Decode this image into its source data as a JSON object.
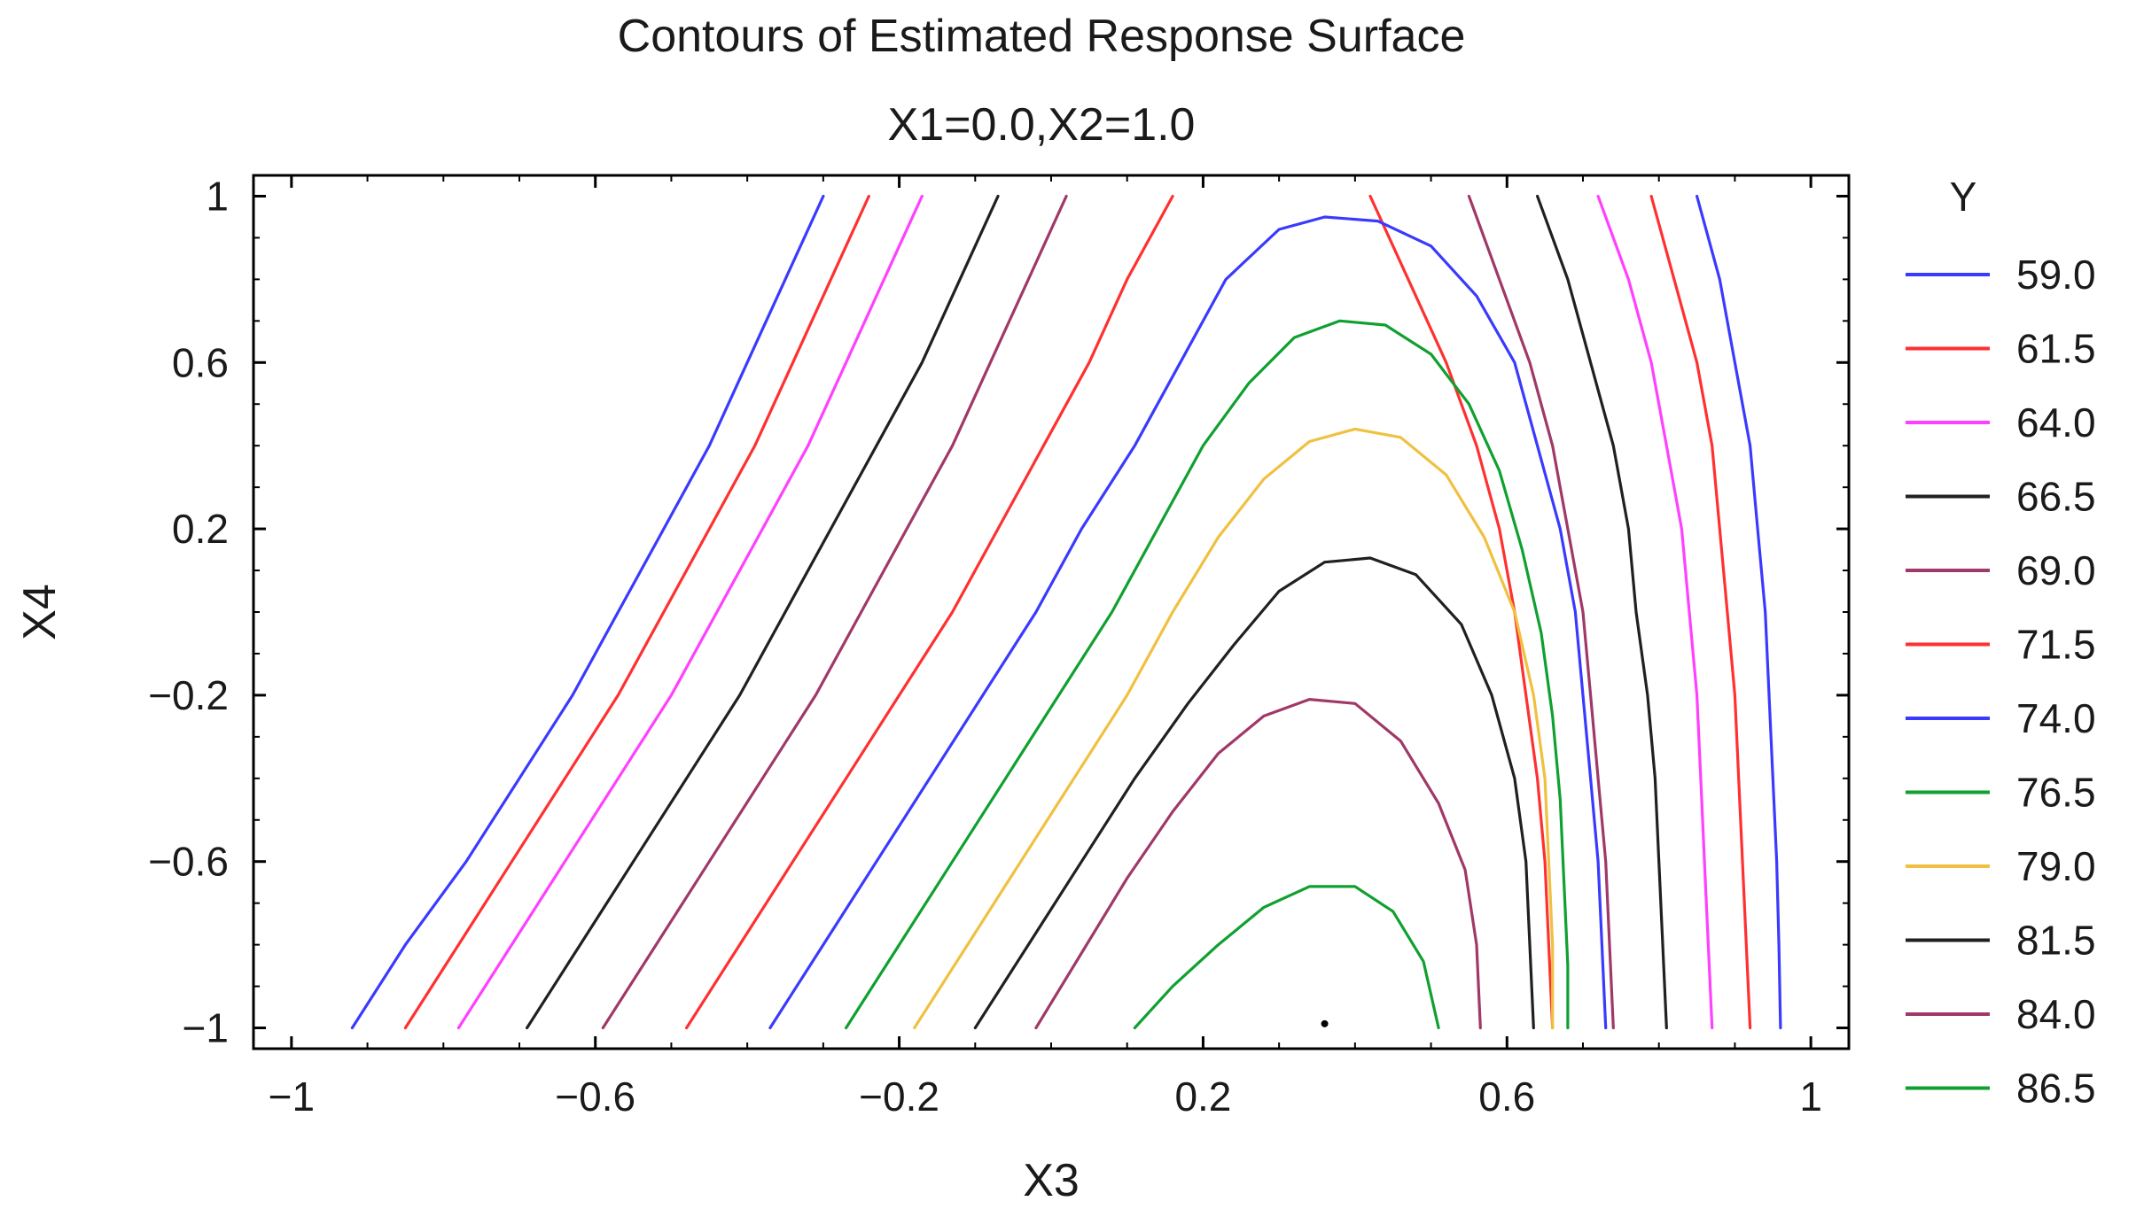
{
  "chart_data": {
    "type": "contour",
    "title": "Contours of Estimated Response Surface",
    "subtitle": "X1=0.0,X2=1.0",
    "xlabel": "X3",
    "ylabel": "X4",
    "xlim": [
      -1.05,
      1.05
    ],
    "ylim": [
      -1.05,
      1.05
    ],
    "x_ticks": [
      {
        "value": -1,
        "label": "-1"
      },
      {
        "value": -0.6,
        "label": "-0.6"
      },
      {
        "value": -0.2,
        "label": "-0.2"
      },
      {
        "value": 0.2,
        "label": "0.2"
      },
      {
        "value": 0.6,
        "label": "0.6"
      },
      {
        "value": 1,
        "label": "1"
      }
    ],
    "y_ticks": [
      {
        "value": 1,
        "label": "1"
      },
      {
        "value": 0.6,
        "label": "0.6"
      },
      {
        "value": 0.2,
        "label": "0.2"
      },
      {
        "value": -0.2,
        "label": "-0.2"
      },
      {
        "value": -0.6,
        "label": "-0.6"
      },
      {
        "value": -1,
        "label": "-1"
      }
    ],
    "legend": {
      "title": "Y",
      "placement": "right",
      "entries": [
        {
          "label": "59.0",
          "color": "#3a3aff"
        },
        {
          "label": "61.5",
          "color": "#ff3030"
        },
        {
          "label": "64.0",
          "color": "#ff40ff"
        },
        {
          "label": "66.5",
          "color": "#202020"
        },
        {
          "label": "69.0",
          "color": "#a03868"
        },
        {
          "label": "71.5",
          "color": "#ff3030"
        },
        {
          "label": "74.0",
          "color": "#3a3aff"
        },
        {
          "label": "76.5",
          "color": "#10a030"
        },
        {
          "label": "79.0",
          "color": "#f0c040"
        },
        {
          "label": "81.5",
          "color": "#202020"
        },
        {
          "label": "84.0",
          "color": "#a03868"
        },
        {
          "label": "86.5",
          "color": "#10a030"
        }
      ]
    },
    "series": [
      {
        "level": 59.0,
        "color": "#3a3aff",
        "segments": [
          [
            [
              -0.92,
              -1
            ],
            [
              -0.85,
              -0.8
            ],
            [
              -0.77,
              -0.6
            ],
            [
              -0.7,
              -0.4
            ],
            [
              -0.63,
              -0.2
            ],
            [
              -0.57,
              0
            ],
            [
              -0.51,
              0.2
            ],
            [
              -0.45,
              0.4
            ],
            [
              -0.4,
              0.6
            ],
            [
              -0.35,
              0.8
            ],
            [
              -0.3,
              1
            ]
          ],
          [
            [
              0.85,
              1
            ],
            [
              0.88,
              0.8
            ],
            [
              0.9,
              0.6
            ],
            [
              0.92,
              0.4
            ],
            [
              0.93,
              0.2
            ],
            [
              0.94,
              0
            ],
            [
              0.945,
              -0.2
            ],
            [
              0.95,
              -0.4
            ],
            [
              0.955,
              -0.6
            ],
            [
              0.958,
              -0.8
            ],
            [
              0.96,
              -1
            ]
          ]
        ]
      },
      {
        "level": 61.5,
        "color": "#ff3030",
        "segments": [
          [
            [
              -0.85,
              -1
            ],
            [
              -0.78,
              -0.8
            ],
            [
              -0.71,
              -0.6
            ],
            [
              -0.64,
              -0.4
            ],
            [
              -0.57,
              -0.2
            ],
            [
              -0.51,
              0
            ],
            [
              -0.45,
              0.2
            ],
            [
              -0.39,
              0.4
            ],
            [
              -0.34,
              0.6
            ],
            [
              -0.29,
              0.8
            ],
            [
              -0.24,
              1
            ]
          ],
          [
            [
              0.79,
              1
            ],
            [
              0.82,
              0.8
            ],
            [
              0.85,
              0.6
            ],
            [
              0.87,
              0.4
            ],
            [
              0.88,
              0.2
            ],
            [
              0.89,
              0
            ],
            [
              0.9,
              -0.2
            ],
            [
              0.905,
              -0.4
            ],
            [
              0.91,
              -0.6
            ],
            [
              0.915,
              -0.8
            ],
            [
              0.92,
              -1
            ]
          ]
        ]
      },
      {
        "level": 64.0,
        "color": "#ff40ff",
        "segments": [
          [
            [
              -0.78,
              -1
            ],
            [
              -0.71,
              -0.8
            ],
            [
              -0.64,
              -0.6
            ],
            [
              -0.57,
              -0.4
            ],
            [
              -0.5,
              -0.2
            ],
            [
              -0.44,
              0
            ],
            [
              -0.38,
              0.2
            ],
            [
              -0.32,
              0.4
            ],
            [
              -0.27,
              0.6
            ],
            [
              -0.22,
              0.8
            ],
            [
              -0.17,
              1
            ]
          ],
          [
            [
              0.72,
              1
            ],
            [
              0.76,
              0.8
            ],
            [
              0.79,
              0.6
            ],
            [
              0.81,
              0.4
            ],
            [
              0.83,
              0.2
            ],
            [
              0.84,
              0
            ],
            [
              0.85,
              -0.2
            ],
            [
              0.855,
              -0.4
            ],
            [
              0.86,
              -0.6
            ],
            [
              0.865,
              -0.8
            ],
            [
              0.87,
              -1
            ]
          ]
        ]
      },
      {
        "level": 66.5,
        "color": "#202020",
        "segments": [
          [
            [
              -0.69,
              -1
            ],
            [
              -0.62,
              -0.8
            ],
            [
              -0.55,
              -0.6
            ],
            [
              -0.48,
              -0.4
            ],
            [
              -0.41,
              -0.2
            ],
            [
              -0.35,
              0
            ],
            [
              -0.29,
              0.2
            ],
            [
              -0.23,
              0.4
            ],
            [
              -0.17,
              0.6
            ],
            [
              -0.12,
              0.8
            ],
            [
              -0.07,
              1
            ]
          ],
          [
            [
              0.64,
              1
            ],
            [
              0.68,
              0.8
            ],
            [
              0.71,
              0.6
            ],
            [
              0.74,
              0.4
            ],
            [
              0.76,
              0.2
            ],
            [
              0.77,
              0
            ],
            [
              0.785,
              -0.2
            ],
            [
              0.795,
              -0.4
            ],
            [
              0.8,
              -0.6
            ],
            [
              0.805,
              -0.8
            ],
            [
              0.81,
              -1
            ]
          ]
        ]
      },
      {
        "level": 69.0,
        "color": "#a03868",
        "segments": [
          [
            [
              -0.59,
              -1
            ],
            [
              -0.52,
              -0.8
            ],
            [
              -0.45,
              -0.6
            ],
            [
              -0.38,
              -0.4
            ],
            [
              -0.31,
              -0.2
            ],
            [
              -0.25,
              0
            ],
            [
              -0.19,
              0.2
            ],
            [
              -0.13,
              0.4
            ],
            [
              -0.08,
              0.6
            ],
            [
              -0.03,
              0.8
            ],
            [
              0.02,
              1
            ]
          ],
          [
            [
              0.55,
              1
            ],
            [
              0.59,
              0.8
            ],
            [
              0.63,
              0.6
            ],
            [
              0.66,
              0.4
            ],
            [
              0.68,
              0.2
            ],
            [
              0.7,
              0
            ],
            [
              0.71,
              -0.2
            ],
            [
              0.72,
              -0.4
            ],
            [
              0.73,
              -0.6
            ],
            [
              0.735,
              -0.8
            ],
            [
              0.74,
              -1
            ]
          ]
        ]
      },
      {
        "level": 71.5,
        "color": "#ff3030",
        "segments": [
          [
            [
              -0.48,
              -1
            ],
            [
              -0.41,
              -0.8
            ],
            [
              -0.34,
              -0.6
            ],
            [
              -0.27,
              -0.4
            ],
            [
              -0.2,
              -0.2
            ],
            [
              -0.13,
              0
            ],
            [
              -0.07,
              0.2
            ],
            [
              -0.01,
              0.4
            ],
            [
              0.05,
              0.6
            ],
            [
              0.1,
              0.8
            ],
            [
              0.16,
              1
            ]
          ],
          [
            [
              0.42,
              1
            ],
            [
              0.47,
              0.8
            ],
            [
              0.52,
              0.6
            ],
            [
              0.56,
              0.4
            ],
            [
              0.59,
              0.2
            ],
            [
              0.61,
              0
            ],
            [
              0.625,
              -0.2
            ],
            [
              0.64,
              -0.4
            ],
            [
              0.65,
              -0.6
            ],
            [
              0.655,
              -0.8
            ],
            [
              0.66,
              -1
            ]
          ]
        ]
      },
      {
        "level": 74.0,
        "color": "#3a3aff",
        "segments": [
          [
            [
              -0.37,
              -1
            ],
            [
              -0.3,
              -0.8
            ],
            [
              -0.23,
              -0.6
            ],
            [
              -0.16,
              -0.4
            ],
            [
              -0.09,
              -0.2
            ],
            [
              -0.02,
              0
            ],
            [
              0.04,
              0.2
            ],
            [
              0.11,
              0.4
            ],
            [
              0.17,
              0.6
            ],
            [
              0.23,
              0.8
            ],
            [
              0.3,
              0.92
            ],
            [
              0.36,
              0.95
            ],
            [
              0.43,
              0.94
            ],
            [
              0.5,
              0.88
            ],
            [
              0.56,
              0.76
            ],
            [
              0.61,
              0.6
            ],
            [
              0.64,
              0.4
            ],
            [
              0.67,
              0.2
            ],
            [
              0.69,
              0
            ],
            [
              0.7,
              -0.2
            ],
            [
              0.71,
              -0.4
            ],
            [
              0.72,
              -0.6
            ],
            [
              0.725,
              -0.8
            ],
            [
              0.73,
              -1
            ]
          ]
        ]
      },
      {
        "level": 76.5,
        "color": "#10a030",
        "segments": [
          [
            [
              -0.27,
              -1
            ],
            [
              -0.2,
              -0.8
            ],
            [
              -0.13,
              -0.6
            ],
            [
              -0.06,
              -0.4
            ],
            [
              0.01,
              -0.2
            ],
            [
              0.08,
              0
            ],
            [
              0.14,
              0.2
            ],
            [
              0.2,
              0.4
            ],
            [
              0.26,
              0.55
            ],
            [
              0.32,
              0.66
            ],
            [
              0.38,
              0.7
            ],
            [
              0.44,
              0.69
            ],
            [
              0.5,
              0.62
            ],
            [
              0.55,
              0.5
            ],
            [
              0.59,
              0.34
            ],
            [
              0.62,
              0.15
            ],
            [
              0.645,
              -0.05
            ],
            [
              0.66,
              -0.25
            ],
            [
              0.67,
              -0.45
            ],
            [
              0.675,
              -0.65
            ],
            [
              0.68,
              -0.85
            ],
            [
              0.68,
              -1
            ]
          ]
        ]
      },
      {
        "level": 79.0,
        "color": "#f0c040",
        "segments": [
          [
            [
              -0.18,
              -1
            ],
            [
              -0.11,
              -0.8
            ],
            [
              -0.04,
              -0.6
            ],
            [
              0.03,
              -0.4
            ],
            [
              0.1,
              -0.2
            ],
            [
              0.16,
              0
            ],
            [
              0.22,
              0.18
            ],
            [
              0.28,
              0.32
            ],
            [
              0.34,
              0.41
            ],
            [
              0.4,
              0.44
            ],
            [
              0.46,
              0.42
            ],
            [
              0.52,
              0.33
            ],
            [
              0.57,
              0.18
            ],
            [
              0.61,
              0
            ],
            [
              0.635,
              -0.2
            ],
            [
              0.65,
              -0.4
            ],
            [
              0.655,
              -0.6
            ],
            [
              0.66,
              -0.8
            ],
            [
              0.66,
              -1
            ]
          ]
        ]
      },
      {
        "level": 81.5,
        "color": "#202020",
        "segments": [
          [
            [
              -0.1,
              -1
            ],
            [
              -0.03,
              -0.8
            ],
            [
              0.04,
              -0.6
            ],
            [
              0.11,
              -0.4
            ],
            [
              0.18,
              -0.22
            ],
            [
              0.24,
              -0.08
            ],
            [
              0.3,
              0.05
            ],
            [
              0.36,
              0.12
            ],
            [
              0.42,
              0.13
            ],
            [
              0.48,
              0.09
            ],
            [
              0.54,
              -0.03
            ],
            [
              0.58,
              -0.2
            ],
            [
              0.61,
              -0.4
            ],
            [
              0.625,
              -0.6
            ],
            [
              0.63,
              -0.8
            ],
            [
              0.635,
              -1
            ]
          ]
        ]
      },
      {
        "level": 84.0,
        "color": "#a03868",
        "segments": [
          [
            [
              -0.02,
              -1
            ],
            [
              0.04,
              -0.82
            ],
            [
              0.1,
              -0.64
            ],
            [
              0.16,
              -0.48
            ],
            [
              0.22,
              -0.34
            ],
            [
              0.28,
              -0.25
            ],
            [
              0.34,
              -0.21
            ],
            [
              0.4,
              -0.22
            ],
            [
              0.46,
              -0.31
            ],
            [
              0.51,
              -0.46
            ],
            [
              0.545,
              -0.62
            ],
            [
              0.56,
              -0.8
            ],
            [
              0.565,
              -1
            ]
          ]
        ]
      },
      {
        "level": 86.5,
        "color": "#10a030",
        "segments": [
          [
            [
              0.11,
              -1
            ],
            [
              0.16,
              -0.9
            ],
            [
              0.22,
              -0.8
            ],
            [
              0.28,
              -0.71
            ],
            [
              0.34,
              -0.66
            ],
            [
              0.4,
              -0.66
            ],
            [
              0.45,
              -0.72
            ],
            [
              0.49,
              -0.84
            ],
            [
              0.51,
              -1
            ]
          ]
        ]
      }
    ],
    "annotations": [
      {
        "type": "point",
        "x": 0.36,
        "y": -0.99,
        "color": "#000000"
      }
    ]
  }
}
